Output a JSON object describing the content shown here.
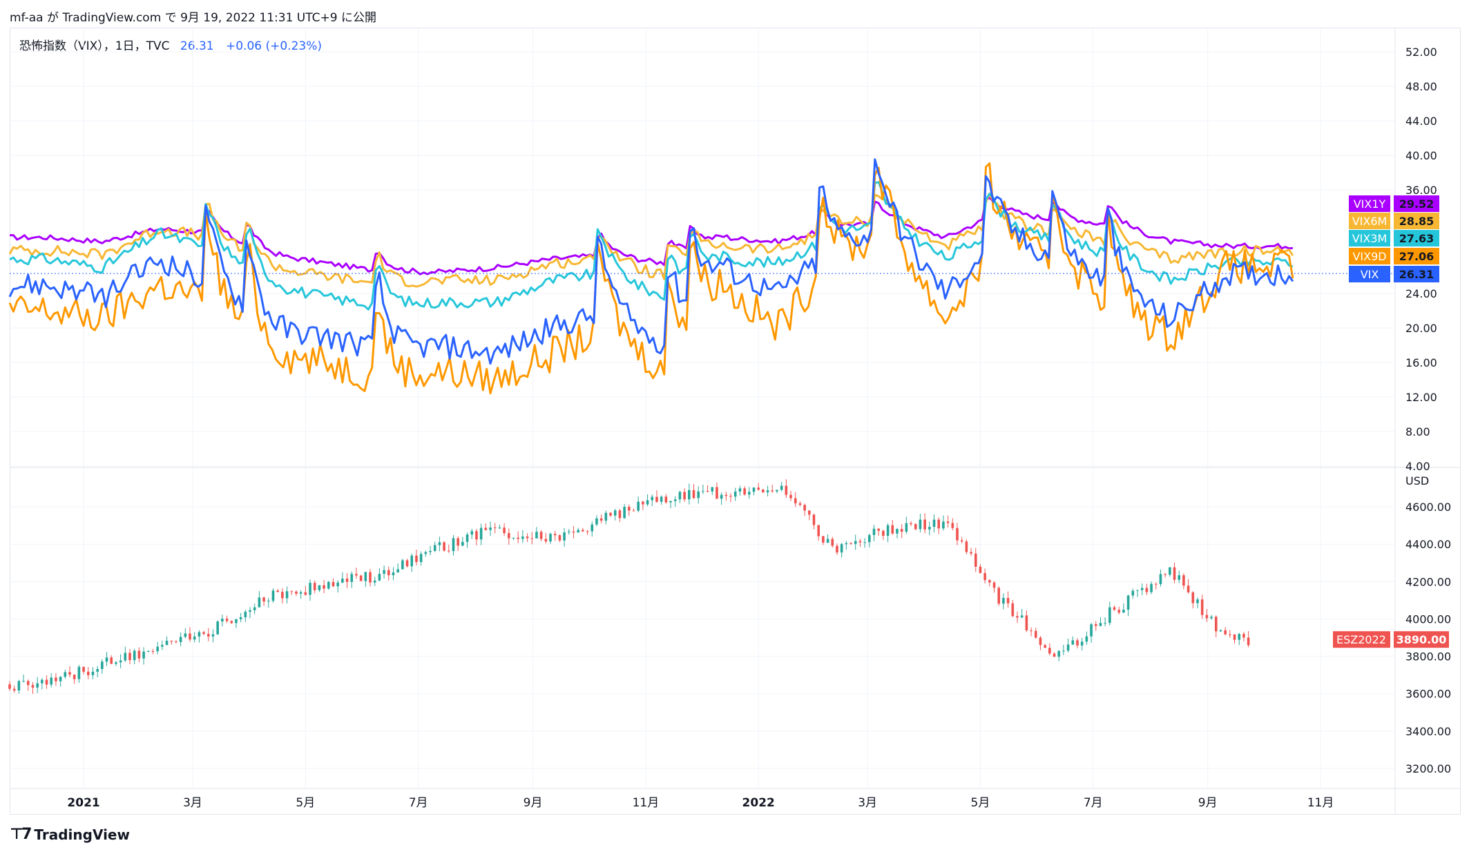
{
  "header": {
    "user": "mf-aa",
    "attribution": "mf-aa が TradingView.com で 9月 19, 2022 11:31 UTC+9 に公開"
  },
  "legend": {
    "title": "恐怖指数（VIX），1日，TVC",
    "last": "26.31",
    "change": "+0.06 (+0.23%)"
  },
  "footer": {
    "brand": "TradingView"
  },
  "colors": {
    "VIX": "#2962ff",
    "VIX9D": "#ff9800",
    "VIX3M": "#26c6da",
    "VIX6M": "#f7b733",
    "VIX1Y": "#aa00ff",
    "candle_up": "#26a69a",
    "candle_down": "#ef5350",
    "es_label": "#ef5350"
  },
  "chart_data": [
    {
      "type": "line",
      "pane": "top",
      "ylim": [
        4,
        54
      ],
      "yticks": [
        "52.00",
        "48.00",
        "44.00",
        "40.00",
        "36.00",
        "24.00",
        "20.00",
        "16.00",
        "12.00",
        "8.00",
        "4.00"
      ],
      "ytick_values": [
        52,
        48,
        44,
        40,
        36,
        24,
        20,
        16,
        12,
        8,
        4
      ],
      "x": [
        "2020-12",
        "2021-01",
        "2021-02",
        "2021-03",
        "2021-04",
        "2021-05",
        "2021-06",
        "2021-07",
        "2021-08",
        "2021-09",
        "2021-10",
        "2021-11",
        "2021-12",
        "2022-01",
        "2022-02",
        "2022-03",
        "2022-04",
        "2022-05",
        "2022-06",
        "2022-07",
        "2022-08",
        "2022-09"
      ],
      "series": [
        {
          "name": "VIX1Y",
          "last": "29.52",
          "values": [
            30.5,
            30.0,
            31.5,
            31.0,
            28.5,
            27.5,
            26.5,
            26.5,
            27.0,
            28.0,
            28.5,
            27.5,
            30.5,
            30.0,
            31.5,
            32.5,
            30.5,
            33.5,
            32.5,
            32.0,
            30.0,
            29.5
          ]
        },
        {
          "name": "VIX6M",
          "last": "28.85",
          "values": [
            29.0,
            28.5,
            31.5,
            30.5,
            27.0,
            26.0,
            25.0,
            25.5,
            25.5,
            27.5,
            28.0,
            26.0,
            29.5,
            29.0,
            31.5,
            33.0,
            29.5,
            32.5,
            31.0,
            30.0,
            28.0,
            28.9
          ]
        },
        {
          "name": "VIX3M",
          "last": "27.63",
          "values": [
            28.0,
            27.0,
            31.0,
            29.0,
            25.0,
            23.5,
            22.5,
            23.0,
            23.0,
            25.5,
            26.5,
            23.5,
            28.0,
            27.5,
            30.5,
            32.5,
            28.0,
            32.0,
            30.0,
            28.5,
            25.5,
            27.6
          ]
        },
        {
          "name": "VIX9D",
          "last": "27.06",
          "values": [
            22.0,
            21.0,
            25.0,
            23.0,
            17.0,
            16.0,
            14.0,
            15.0,
            14.0,
            17.0,
            20.0,
            15.0,
            25.0,
            20.0,
            28.0,
            31.0,
            21.0,
            31.0,
            27.0,
            23.0,
            19.0,
            27.1
          ]
        },
        {
          "name": "VIX",
          "last": "26.31",
          "values": [
            25.0,
            23.5,
            28.0,
            25.0,
            20.0,
            19.0,
            17.5,
            18.0,
            17.0,
            20.0,
            22.0,
            18.0,
            27.0,
            24.0,
            29.0,
            32.0,
            24.0,
            31.0,
            28.0,
            25.0,
            21.0,
            26.3
          ]
        }
      ]
    },
    {
      "type": "candlestick",
      "pane": "bottom",
      "unit": "USD",
      "symbol": "ESZ2022",
      "last": "3890.00",
      "ylim": [
        3100,
        4800
      ],
      "yticks": [
        "4600.00",
        "4400.00",
        "4200.00",
        "4000.00",
        "3800.00",
        "3600.00",
        "3400.00",
        "3200.00"
      ],
      "ytick_values": [
        4600,
        4400,
        4200,
        4000,
        3800,
        3600,
        3400,
        3200
      ],
      "x": [
        "2020-12",
        "2021-01",
        "2021-02",
        "2021-03",
        "2021-04",
        "2021-05",
        "2021-06",
        "2021-07",
        "2021-08",
        "2021-09",
        "2021-10",
        "2021-11",
        "2021-12",
        "2022-01",
        "2022-02",
        "2022-03",
        "2022-04",
        "2022-05",
        "2022-06",
        "2022-07",
        "2022-08",
        "2022-09"
      ],
      "close": [
        3650,
        3760,
        3850,
        3950,
        4120,
        4190,
        4230,
        4380,
        4480,
        4420,
        4540,
        4650,
        4680,
        4720,
        4380,
        4490,
        4520,
        4090,
        3800,
        4050,
        4260,
        3890
      ]
    }
  ],
  "xaxis": {
    "labels": [
      "2021",
      "3月",
      "5月",
      "7月",
      "9月",
      "11月",
      "2022",
      "3月",
      "5月",
      "7月",
      "9月",
      "11月"
    ],
    "bold": [
      true,
      false,
      false,
      false,
      false,
      false,
      true,
      false,
      false,
      false,
      false,
      false
    ],
    "x_positions_days": [
      0,
      59,
      120,
      181,
      243,
      304,
      365,
      424,
      485,
      546,
      608,
      669
    ]
  }
}
